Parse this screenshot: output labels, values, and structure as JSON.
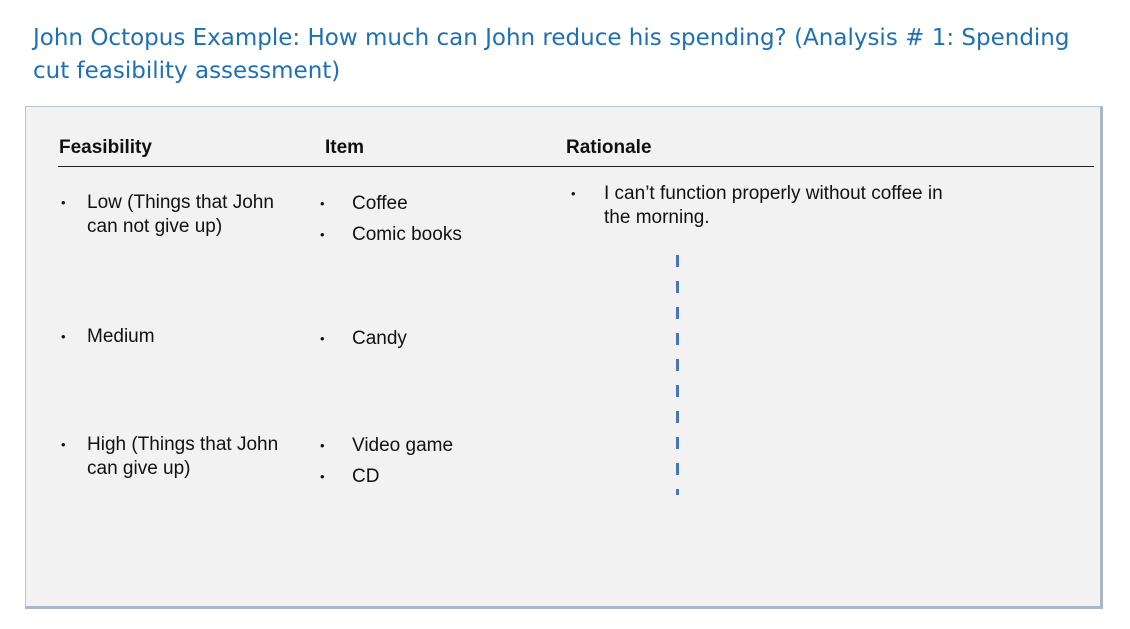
{
  "title": "John Octopus Example: How much can John reduce his spending? (Analysis # 1: Spending cut feasibility assessment)",
  "headers": {
    "feasibility": "Feasibility",
    "item": "Item",
    "rationale": "Rationale"
  },
  "bullet_glyph": "•",
  "rows": [
    {
      "feasibility": "Low (Things that John\ncan not give up)",
      "items": [
        "Coffee",
        "Comic books"
      ],
      "rationale": "I can’t function properly without coffee in\nthe morning."
    },
    {
      "feasibility": "Medium",
      "items": [
        "Candy"
      ]
    },
    {
      "feasibility": "High (Things that John\ncan give up)",
      "items": [
        "Video game",
        "CD"
      ]
    }
  ],
  "colors": {
    "title": "#1f6fb5",
    "panel_background": "#f2f2f3",
    "divider": "#4a76b8"
  }
}
